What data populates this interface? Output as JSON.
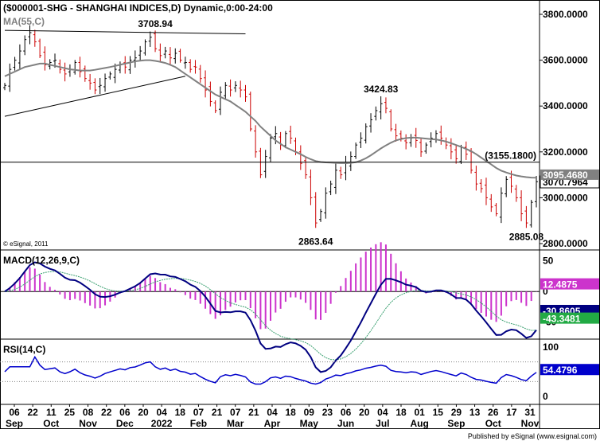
{
  "chart_data": [
    {
      "panel": "price",
      "type": "ohlc-bar",
      "title": "($000001-SHG - SHANGHAI INDICES,D) Dynamic,0:00-24:00",
      "overlay_label": "MA(55,C)",
      "copyright": "© eSignal, 2011",
      "ylim": [
        2800,
        3800
      ],
      "y_ticks": [
        "3800.0000",
        "3600.0000",
        "3400.0000",
        "3200.0000",
        "3000.0000",
        "2800.0000"
      ],
      "y_tick_values": [
        3800,
        3600,
        3400,
        3200,
        3000,
        2800
      ],
      "colors": {
        "bars": "#000000",
        "down_bars": "#cc0000",
        "ma": "#808080",
        "lines": "#000000"
      },
      "close_series": [
        3490,
        3560,
        3600,
        3640,
        3690,
        3720,
        3680,
        3620,
        3580,
        3590,
        3600,
        3560,
        3540,
        3560,
        3590,
        3550,
        3520,
        3500,
        3470,
        3490,
        3520,
        3540,
        3560,
        3580,
        3570,
        3600,
        3610,
        3640,
        3680,
        3700,
        3650,
        3620,
        3640,
        3610,
        3630,
        3600,
        3590,
        3560,
        3570,
        3520,
        3470,
        3420,
        3380,
        3460,
        3490,
        3470,
        3490,
        3470,
        3440,
        3300,
        3200,
        3100,
        3180,
        3260,
        3280,
        3230,
        3280,
        3260,
        3200,
        3150,
        3100,
        3000,
        2890,
        2940,
        3020,
        3060,
        3120,
        3100,
        3150,
        3180,
        3230,
        3260,
        3310,
        3340,
        3380,
        3410,
        3390,
        3300,
        3270,
        3260,
        3240,
        3260,
        3250,
        3200,
        3230,
        3260,
        3280,
        3260,
        3230,
        3200,
        3170,
        3220,
        3190,
        3120,
        3060,
        3040,
        3000,
        2960,
        2930,
        3020,
        3080,
        3050,
        3000,
        2930,
        2890,
        2980,
        3070
      ],
      "ma_series": [
        3530,
        3540,
        3550,
        3560,
        3570,
        3575,
        3580,
        3585,
        3585,
        3580,
        3575,
        3570,
        3565,
        3560,
        3558,
        3555,
        3555,
        3555,
        3558,
        3562,
        3566,
        3570,
        3575,
        3580,
        3585,
        3590,
        3595,
        3598,
        3600,
        3600,
        3597,
        3593,
        3588,
        3580,
        3570,
        3555,
        3540,
        3525,
        3510,
        3495,
        3480,
        3465,
        3450,
        3440,
        3430,
        3420,
        3405,
        3390,
        3375,
        3355,
        3335,
        3310,
        3290,
        3270,
        3250,
        3235,
        3220,
        3210,
        3200,
        3190,
        3178,
        3168,
        3160,
        3156,
        3154,
        3153,
        3152,
        3151,
        3151,
        3152,
        3155,
        3162,
        3172,
        3185,
        3200,
        3215,
        3228,
        3240,
        3250,
        3256,
        3260,
        3262,
        3262,
        3260,
        3258,
        3256,
        3254,
        3250,
        3245,
        3238,
        3230,
        3222,
        3213,
        3203,
        3190,
        3175,
        3160,
        3145,
        3130,
        3118,
        3110,
        3103,
        3097,
        3093,
        3090,
        3088,
        3087
      ],
      "annotations": [
        {
          "label": "3708.94",
          "x_index": 30,
          "y": 3708.94,
          "role": "high"
        },
        {
          "label": "3424.83",
          "x_index": 75,
          "y": 3424.83,
          "role": "high"
        },
        {
          "label": "(3155.1800)",
          "y": 3155.18,
          "role": "level"
        },
        {
          "label": "2863.64",
          "x_index": 62,
          "y": 2863.64,
          "role": "low"
        },
        {
          "label": "2885.08",
          "x_index": 104,
          "y": 2885.08,
          "role": "low"
        }
      ],
      "value_labels": [
        {
          "label": "3070.7964",
          "y": 3070.7964,
          "style": "close"
        },
        {
          "label": "3095.4680",
          "y": 3095.468,
          "style": "ma"
        }
      ],
      "trendlines": [
        {
          "from": [
            0,
            3730
          ],
          "to": [
            48,
            3715
          ]
        },
        {
          "from": [
            0,
            3355
          ],
          "to": [
            36,
            3530
          ]
        }
      ]
    },
    {
      "panel": "macd",
      "type": "line+histogram",
      "title": "MACD(12,26,9,C)",
      "ylim": [
        -75,
        60
      ],
      "y_ticks": [
        "50",
        "0",
        "-50"
      ],
      "y_tick_values": [
        50,
        0,
        -50
      ],
      "colors": {
        "macd": "#000080",
        "signal": "#3aa070",
        "hist": "#cc33cc",
        "zero": "#000000"
      },
      "value_labels": [
        {
          "label": "12.4875",
          "y": 12.4875,
          "bg": "#cc33cc"
        },
        {
          "label": "-30.8605",
          "y": -30.8605,
          "bg": "#000080"
        },
        {
          "label": "-43.3481",
          "y": -43.3481,
          "bg": "#22aa44"
        }
      ]
    },
    {
      "panel": "rsi",
      "type": "line",
      "title": "RSI(14,C)",
      "ylim": [
        0,
        100
      ],
      "y_ticks": [
        "100",
        "50",
        "0"
      ],
      "y_tick_values": [
        100,
        50,
        0
      ],
      "guides": [
        70,
        30
      ],
      "colors": {
        "rsi": "#0000cc",
        "guides": "#808080"
      },
      "value_labels": [
        {
          "label": "54.4796",
          "y": 54.4796,
          "bg": "#0000cc"
        }
      ]
    }
  ],
  "x_axis": {
    "day_labels": [
      "06",
      "22",
      "11",
      "25",
      "08",
      "22",
      "06",
      "20",
      "04",
      "18",
      "07",
      "21",
      "07",
      "21",
      "04",
      "18",
      "09",
      "23",
      "06",
      "20",
      "04",
      "18",
      "01",
      "15",
      "29",
      "13",
      "26",
      "17",
      "31"
    ],
    "day_label_indices": [
      0,
      5,
      10,
      15,
      20,
      25,
      30,
      35,
      40,
      45,
      50,
      55,
      60,
      65,
      70,
      75,
      80,
      85,
      88,
      92,
      95,
      98,
      100,
      102,
      104,
      105,
      106,
      106,
      106
    ],
    "month_labels": [
      "Sep",
      "Oct",
      "Nov",
      "Dec",
      "2022",
      "Feb",
      "Mar",
      "Apr",
      "May",
      "Jun",
      "Jul",
      "Aug",
      "Sep",
      "Oct",
      "Nov"
    ]
  },
  "footer": "Published by eSignal (www.esignal.com)"
}
